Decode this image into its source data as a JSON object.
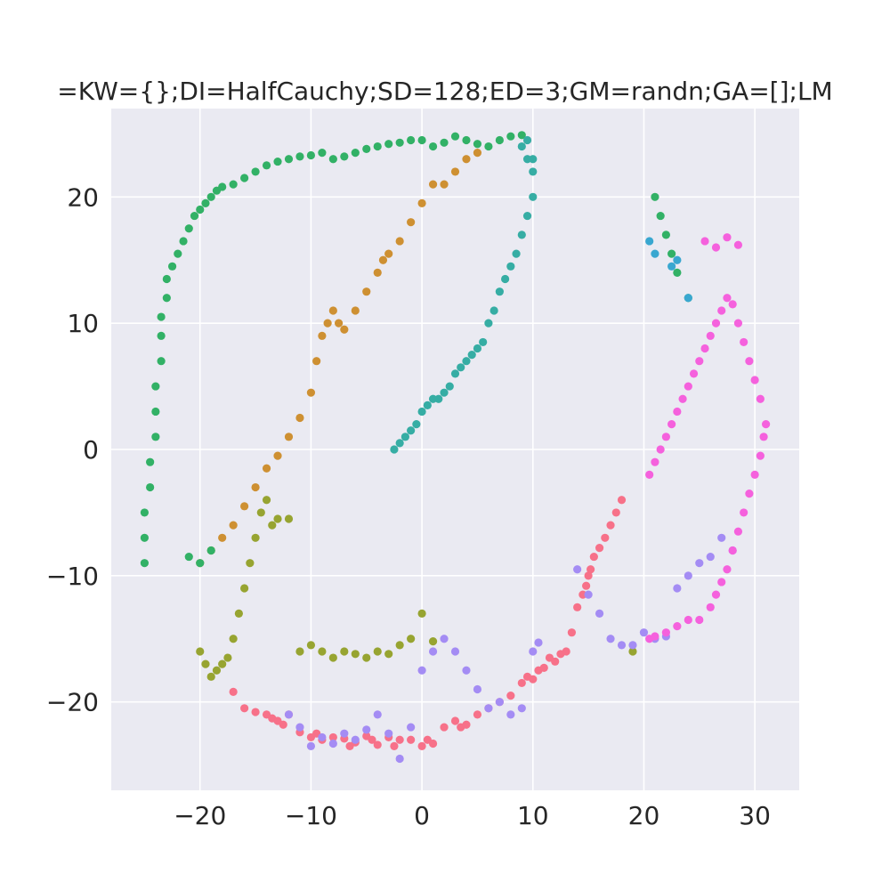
{
  "chart_data": {
    "type": "scatter",
    "title": "=KW={};DI=HalfCauchy;SD=128;ED=3;GM=randn;GA=[];LM",
    "xlabel": "",
    "ylabel": "",
    "xlim": [
      -28.0,
      34.0
    ],
    "ylim": [
      -27.0,
      27.0
    ],
    "x_ticks": [
      -20,
      -10,
      0,
      10,
      20,
      30
    ],
    "y_ticks": [
      -20,
      -10,
      0,
      10,
      20
    ],
    "x_tick_labels": [
      "−20",
      "−10",
      "0",
      "10",
      "20",
      "30"
    ],
    "y_tick_labels": [
      "−20",
      "−10",
      "0",
      "10",
      "20"
    ],
    "grid": true,
    "legend": "none",
    "series": [
      {
        "color": "#f77189",
        "x": [
          -17,
          -16,
          -15,
          -14,
          -13.5,
          -13,
          -12.5,
          -12,
          -11,
          -10,
          -9.5,
          -9,
          -8,
          -7,
          -6.5,
          -6,
          -5,
          -4.5,
          -4,
          -3,
          -2.5,
          -2,
          -1,
          0,
          0.5,
          1,
          2,
          3,
          3.5,
          4,
          5,
          6,
          7,
          8,
          9,
          9.5,
          10,
          10.5,
          11,
          11.5,
          12,
          12.5,
          13
        ],
        "y": [
          -19.2,
          -20.5,
          -20.8,
          -21,
          -21.3,
          -21.5,
          -21.8,
          -21,
          -22.4,
          -22.8,
          -22.5,
          -23,
          -22.8,
          -22.9,
          -23.5,
          -23.2,
          -22.7,
          -23,
          -23.4,
          -22.8,
          -23.5,
          -23,
          -23,
          -23.5,
          -23,
          -23.3,
          -22,
          -21.5,
          -22,
          -21.8,
          -21,
          -20.5,
          -20,
          -19.5,
          -18.5,
          -18,
          -18.2,
          -17.5,
          -17.3,
          -16.5,
          -16.8,
          -16.2,
          -16
        ]
      },
      {
        "color": "#f77189",
        "x": [
          13.5,
          14,
          14.5,
          14.8,
          15,
          15.2,
          15.5,
          16,
          16.5,
          17,
          17.5,
          18
        ],
        "y": [
          -14.5,
          -12.5,
          -11.5,
          -10.8,
          -10,
          -9.5,
          -8.5,
          -7.8,
          -7,
          -6,
          -5,
          -4
        ]
      },
      {
        "color": "#ce9032",
        "x": [
          -20,
          -19,
          -18,
          -17,
          -16,
          -15,
          -14,
          -13,
          -12,
          -11,
          -10,
          -9.5,
          -9,
          -8.5,
          -8,
          -7.5,
          -7,
          -6,
          -5,
          -4,
          -3.5,
          -3,
          -2,
          -1,
          0,
          1,
          2,
          3,
          4,
          5
        ],
        "y": [
          -9,
          -8,
          -7,
          -6,
          -4.5,
          -3,
          -1.5,
          -0.5,
          1,
          2.5,
          4.5,
          7,
          9,
          10,
          11,
          10,
          9.5,
          11,
          12.5,
          14,
          15,
          15.5,
          16.5,
          18,
          19.5,
          21,
          21,
          22,
          23,
          23.5
        ]
      },
      {
        "color": "#97a431",
        "x": [
          -20,
          -19.5,
          -19,
          -18.5,
          -18,
          -17.5,
          -17,
          -16.5,
          -16,
          -15.5,
          -15,
          -14.5,
          -14,
          -13.5,
          -13,
          -12,
          -11,
          -10,
          -9,
          -8,
          -7,
          -6,
          -5,
          -4,
          -3,
          -2,
          -1,
          0,
          1,
          19
        ],
        "y": [
          -16,
          -17,
          -18,
          -17.5,
          -17,
          -16.5,
          -15,
          -13,
          -11,
          -9,
          -7,
          -5,
          -4,
          -6,
          -5.5,
          -5.5,
          -16,
          -15.5,
          -16,
          -16.5,
          -16,
          -16.2,
          -16.5,
          -16,
          -16.2,
          -15.5,
          -15,
          -13,
          -15.2,
          -16
        ]
      },
      {
        "color": "#32b166",
        "x": [
          -25,
          -25,
          -25,
          -24.5,
          -24.5,
          -24,
          -24,
          -24,
          -23.5,
          -23.5,
          -23.5,
          -23,
          -23,
          -22.5,
          -22,
          -21.5,
          -21,
          -20.5,
          -20,
          -19.5,
          -19,
          -18.5,
          -18,
          -17,
          -16,
          -15,
          -14,
          -13,
          -12,
          -11,
          -10,
          -9,
          -8,
          -7,
          -6,
          -5,
          -4,
          -3,
          -2,
          -1,
          0,
          1,
          2,
          3,
          4,
          5,
          6,
          7,
          8,
          9,
          -21,
          -20,
          -19,
          21,
          21.5,
          22,
          22.5,
          23,
          24
        ],
        "y": [
          -9,
          -7,
          -5,
          -3,
          -1,
          1,
          3,
          5,
          7,
          9,
          10.5,
          12,
          13.5,
          14.5,
          15.5,
          16.5,
          17.5,
          18.5,
          19,
          19.5,
          20,
          20.5,
          20.8,
          21,
          21.5,
          22,
          22.5,
          22.8,
          23,
          23.2,
          23.3,
          23.5,
          23,
          23.2,
          23.5,
          23.8,
          24,
          24.2,
          24.3,
          24.5,
          24.5,
          24,
          24.3,
          24.8,
          24.5,
          24.2,
          24,
          24.5,
          24.8,
          24.9,
          -8.5,
          -9,
          -8,
          20,
          18.5,
          17,
          15.5,
          14,
          12
        ]
      },
      {
        "color": "#36ada4",
        "x": [
          -2.5,
          -2,
          -1.5,
          -1,
          -0.5,
          0,
          0.5,
          1,
          1.5,
          2,
          2.5,
          3,
          3.5,
          4,
          4.5,
          5,
          5.5,
          6,
          6.5,
          7,
          7.5,
          8,
          8.5,
          9,
          9.5,
          10,
          10,
          9.5,
          9,
          9.5,
          10
        ],
        "y": [
          0,
          0.5,
          1,
          1.5,
          2,
          3,
          3.5,
          4,
          4,
          4.5,
          5,
          6,
          6.5,
          7,
          7.5,
          8,
          8.5,
          10,
          11,
          12.5,
          13.5,
          14.5,
          15.5,
          17,
          18.5,
          20,
          22,
          23,
          24,
          24.5,
          23
        ]
      },
      {
        "color": "#a48cf4",
        "x": [
          -12,
          -11,
          -10,
          -9,
          -8,
          -7,
          -6,
          -5,
          -4,
          -3,
          -2,
          -1,
          0,
          1,
          2,
          3,
          4,
          5,
          6,
          7,
          8,
          9,
          10,
          14,
          15,
          16,
          17,
          18,
          19,
          20,
          21,
          22,
          23,
          24,
          25,
          26,
          27,
          28,
          10.5
        ],
        "y": [
          -21,
          -22,
          -23.5,
          -22.8,
          -23.3,
          -22.5,
          -23,
          -22.2,
          -21,
          -22.5,
          -24.5,
          -22,
          -17.5,
          -16,
          -15,
          -16,
          -17.5,
          -19,
          -20.5,
          -20,
          -21,
          -20.5,
          -16,
          -9.5,
          -11.5,
          -13,
          -15,
          -15.5,
          -15.5,
          -14.5,
          -15,
          -14.8,
          -11,
          -10,
          -9,
          -8.5,
          -7,
          -8,
          -15.3
        ]
      },
      {
        "color": "#f561dd",
        "x": [
          20.5,
          21,
          22,
          23,
          24,
          25,
          26,
          26.5,
          27,
          27.5,
          28,
          28.5,
          29,
          29.5,
          30,
          30.5,
          30.8,
          31,
          30.5,
          30,
          29.5,
          29,
          28.5,
          28,
          27.5,
          27,
          26.5,
          26,
          25.5,
          25,
          24.5,
          24,
          23.5,
          23,
          22.5,
          22,
          21.5,
          21,
          20.5,
          25.5,
          26.5,
          27.5,
          28.5
        ],
        "y": [
          -15,
          -14.8,
          -14.5,
          -14,
          -13.5,
          -13.5,
          -12.5,
          -11.5,
          -10.5,
          -9.5,
          -8,
          -6.5,
          -5,
          -3.5,
          -2,
          -0.5,
          1,
          2,
          4,
          5.5,
          7,
          8.5,
          10,
          11.5,
          12,
          11,
          10,
          9,
          8,
          7,
          6,
          5,
          4,
          3,
          2,
          1,
          0,
          -1,
          -2,
          16.5,
          16,
          16.8,
          16.2
        ]
      },
      {
        "color": "#39a7d0",
        "x": [
          20.5,
          21,
          22.5,
          23,
          24
        ],
        "y": [
          16.5,
          15.5,
          14.5,
          15,
          12
        ]
      }
    ]
  }
}
